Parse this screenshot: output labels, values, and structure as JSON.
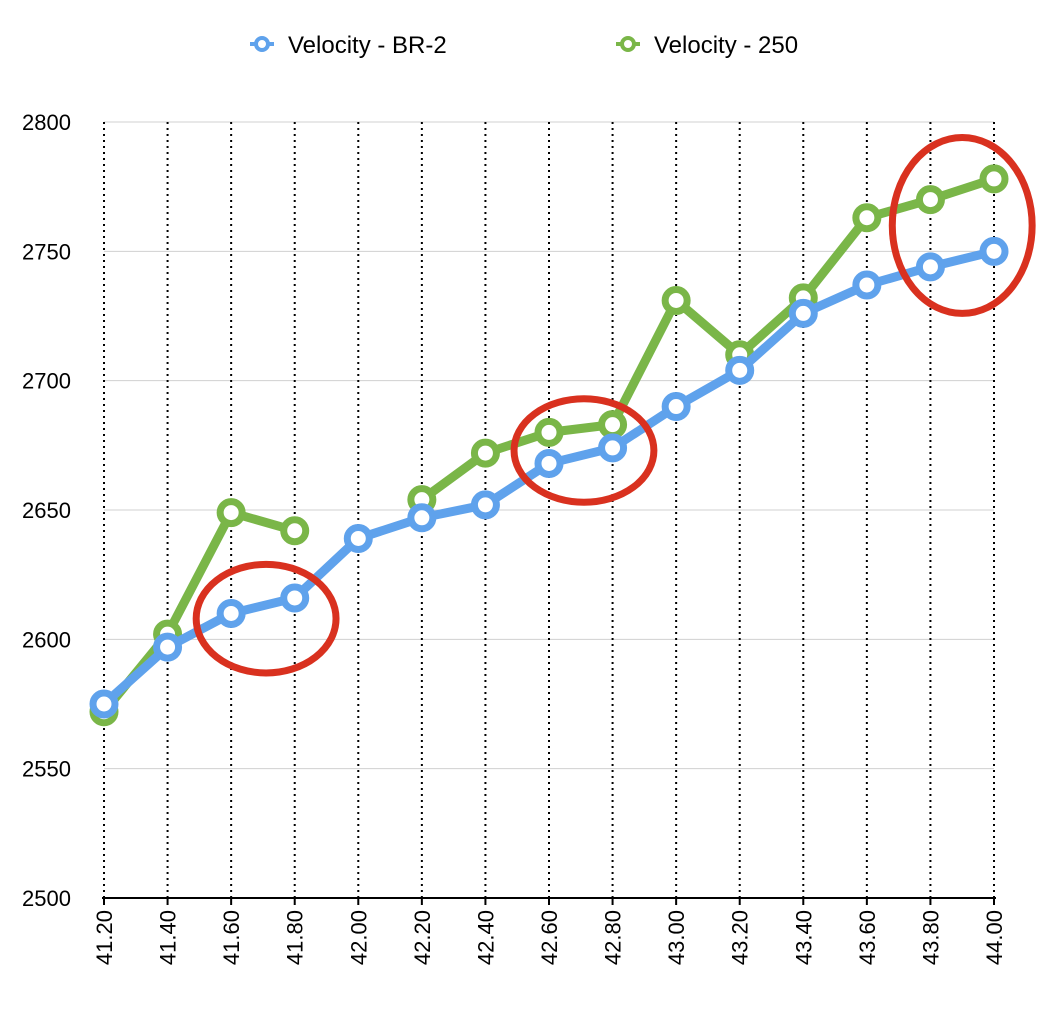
{
  "chart_data": {
    "type": "line",
    "x": [
      "41.20",
      "41.40",
      "41.60",
      "41.80",
      "42.00",
      "42.20",
      "42.40",
      "42.60",
      "42.80",
      "43.00",
      "43.20",
      "43.40",
      "43.60",
      "43.80",
      "44.00"
    ],
    "ylim": [
      2500,
      2800
    ],
    "yticks": [
      "2500",
      "2550",
      "2600",
      "2650",
      "2700",
      "2750",
      "2800"
    ],
    "horizontal_grid": true,
    "vertical_grid": "dotted",
    "legend_position": "top-center",
    "series": [
      {
        "name": "Velocity - BR-2",
        "color": "#5fa2ec",
        "values": [
          2575,
          2597,
          2610,
          2616,
          2639,
          2647,
          2652,
          2668,
          2674,
          2690,
          2704,
          2726,
          2737,
          2744,
          2750
        ]
      },
      {
        "name": "Velocity - 250",
        "color": "#7ab648",
        "values": [
          2572,
          2602,
          2649,
          2642,
          null,
          2654,
          2672,
          2680,
          2683,
          2731,
          2710,
          2732,
          2763,
          2770,
          2778
        ]
      }
    ],
    "annotations": [
      {
        "shape": "ellipse",
        "color": "#d9311f",
        "x_center": 41.71,
        "y_center": 2608,
        "x_radius": 0.22,
        "y_radius": 21
      },
      {
        "shape": "ellipse",
        "color": "#d9311f",
        "x_center": 42.71,
        "y_center": 2673,
        "x_radius": 0.22,
        "y_radius": 20
      },
      {
        "shape": "ellipse",
        "color": "#d9311f",
        "x_center": 43.9,
        "y_center": 2760,
        "x_radius": 0.22,
        "y_radius": 34
      }
    ]
  }
}
